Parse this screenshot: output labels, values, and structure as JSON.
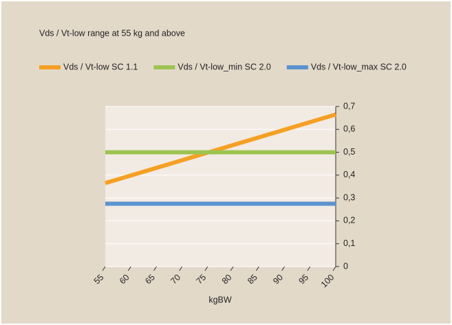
{
  "chart_data": {
    "type": "line",
    "title": "Vds / Vt-low range at 55 kg and above",
    "x_label": "kgBW",
    "x": [
      55,
      100
    ],
    "series": [
      {
        "name": "Vds / Vt-low SC 1.1",
        "color": "#f5a024",
        "values": [
          0.365,
          0.665
        ]
      },
      {
        "name": "Vds / Vt-low_min SC 2.0",
        "color": "#9cc450",
        "values": [
          0.5,
          0.5
        ]
      },
      {
        "name": "Vds / Vt-low_max SC 2.0",
        "color": "#5b93cf",
        "values": [
          0.275,
          0.275
        ]
      }
    ],
    "xlim": [
      55,
      100
    ],
    "xticks": [
      55,
      60,
      65,
      70,
      75,
      80,
      85,
      90,
      95,
      100
    ],
    "ylim": [
      0,
      0.7
    ],
    "yticks": [
      0,
      {
        "value": 0.1,
        "label": "0,1"
      },
      {
        "value": 0.2,
        "label": "0,2"
      },
      {
        "value": 0.3,
        "label": "0,3"
      },
      {
        "value": 0.4,
        "label": "0,4"
      },
      {
        "value": 0.5,
        "label": "0,5"
      },
      {
        "value": 0.6,
        "label": "0,6"
      },
      {
        "value": 0.7,
        "label": "0,7"
      }
    ],
    "grid": true,
    "y_axis_side": "right"
  }
}
